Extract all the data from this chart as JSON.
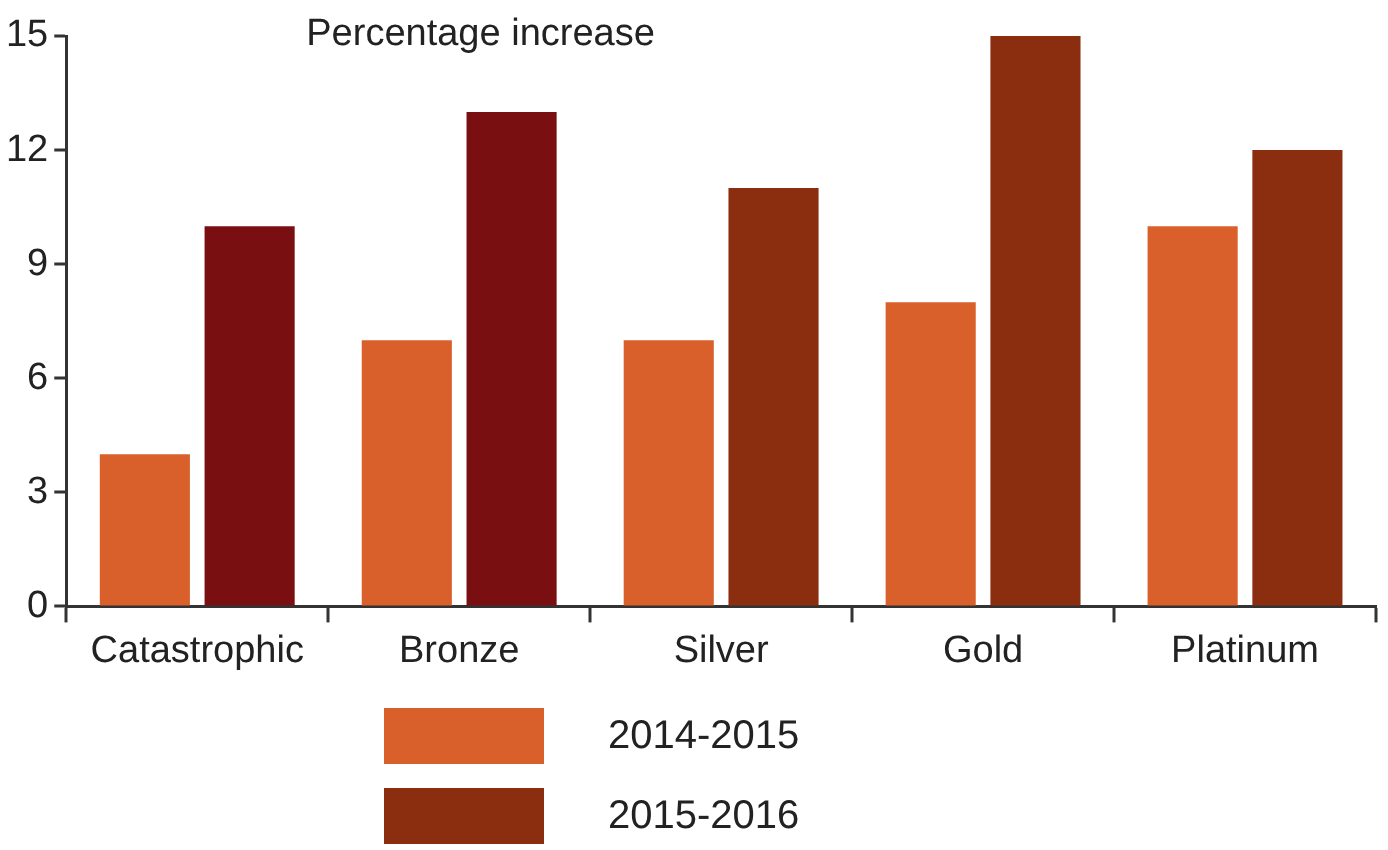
{
  "chart_data": {
    "type": "bar",
    "ylabel": "Percentage increase",
    "categories": [
      "Catastrophic",
      "Bronze",
      "Silver",
      "Gold",
      "Platinum"
    ],
    "series": [
      {
        "name": "2014-2015",
        "color": "#d95f2b",
        "values": [
          4,
          7,
          7,
          8,
          10
        ]
      },
      {
        "name": "2015-2016",
        "color": "#8b2e0f",
        "colors": [
          "#7a0f12",
          "#7a0f12",
          "#8b2e0f",
          "#8b2e0f",
          "#8b2e0f"
        ],
        "values": [
          10,
          13,
          11,
          15,
          12
        ]
      }
    ],
    "ylim": [
      0,
      15
    ],
    "yticks": [
      0,
      3,
      6,
      9,
      12,
      15
    ],
    "grid": false,
    "legend": "bottom"
  }
}
